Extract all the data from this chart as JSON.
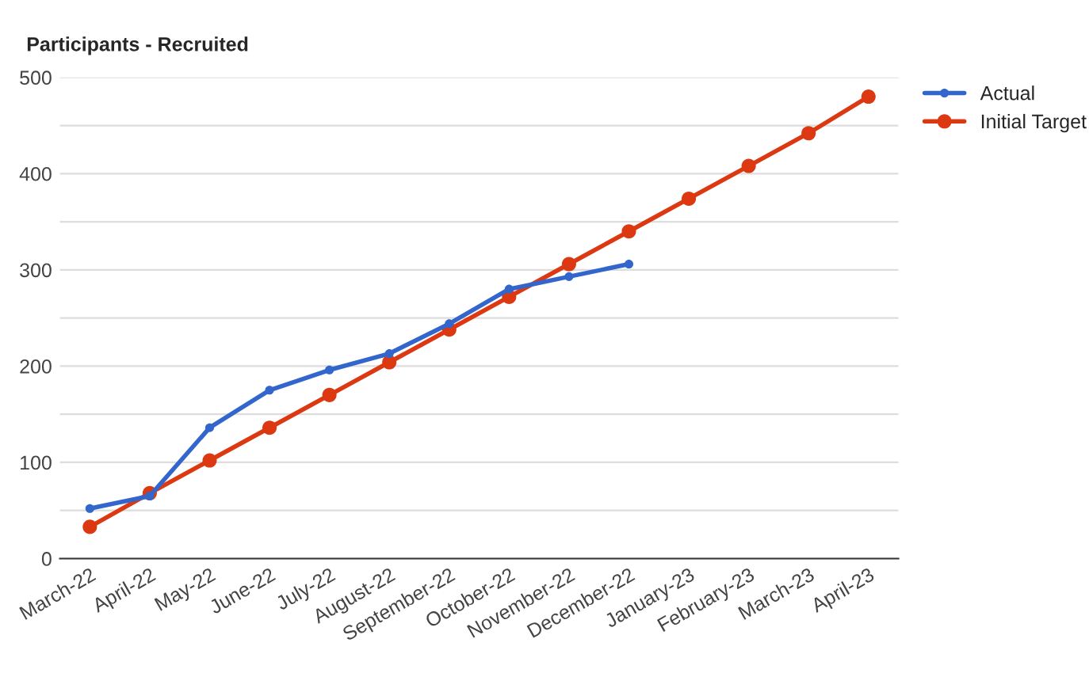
{
  "chart_data": {
    "type": "line",
    "title": "Participants - Recruited",
    "categories": [
      "March-22",
      "April-22",
      "May-22",
      "June-22",
      "July-22",
      "August-22",
      "September-22",
      "October-22",
      "November-22",
      "December-22",
      "January-23",
      "February-23",
      "March-23",
      "April-23"
    ],
    "series": [
      {
        "name": "Actual",
        "color": "#3366cc",
        "values": [
          52,
          65,
          136,
          175,
          196,
          213,
          244,
          280,
          293,
          306,
          null,
          null,
          null,
          null
        ]
      },
      {
        "name": "Initial Target",
        "color": "#dc3912",
        "values": [
          33,
          68,
          102,
          136,
          170,
          204,
          238,
          272,
          306,
          340,
          374,
          408,
          442,
          480
        ]
      }
    ],
    "ylim": [
      0,
      500
    ],
    "yticks": [
      0,
      {
        "value": 50,
        "label": null
      },
      100,
      {
        "value": 150,
        "label": null
      },
      200,
      {
        "value": 250,
        "label": null
      },
      300,
      {
        "value": 350,
        "label": null
      },
      400,
      {
        "value": 450,
        "label": null
      },
      500
    ],
    "grid": "y",
    "legend": "top right",
    "marker": "circle",
    "line_style": "solid"
  }
}
